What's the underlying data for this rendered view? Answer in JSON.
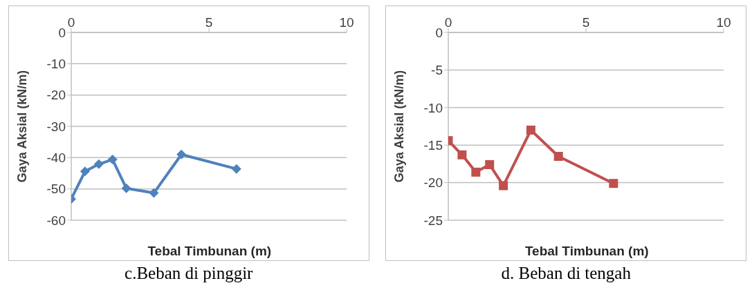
{
  "chart_data": [
    {
      "type": "line",
      "xlabel": "Tebal Timbunan (m)",
      "ylabel": "Gaya Aksial (kN/m)",
      "annotations": [
        "c.Beban di pinggir"
      ],
      "xlim": [
        0,
        10
      ],
      "xticks": [
        0,
        5,
        10
      ],
      "ylim": [
        -60,
        0
      ],
      "yticks": [
        -60,
        -50,
        -40,
        -30,
        -20,
        -10,
        0
      ],
      "grid": "y",
      "legend": false,
      "marker": "diamond",
      "x": [
        0,
        0.5,
        1,
        1.5,
        2,
        3,
        4,
        6
      ],
      "series": [
        {
          "color": "#4f81bd",
          "values": [
            -53.2,
            -44.4,
            -42.1,
            -40.6,
            -49.8,
            -51.3,
            -39.0,
            -43.6
          ]
        }
      ]
    },
    {
      "type": "line",
      "xlabel": "Tebal Timbunan (m)",
      "ylabel": "Gaya Aksial (kN/m)",
      "annotations": [
        "d. Beban di tengah"
      ],
      "xlim": [
        0,
        10
      ],
      "xticks": [
        0,
        5,
        10
      ],
      "ylim": [
        -25,
        0
      ],
      "yticks": [
        -25,
        -20,
        -15,
        -10,
        -5,
        0
      ],
      "grid": "y",
      "legend": false,
      "marker": "square",
      "x": [
        0,
        0.5,
        1,
        1.5,
        2,
        3,
        4,
        6
      ],
      "series": [
        {
          "color": "#c0504d",
          "values": [
            -14.4,
            -16.3,
            -18.6,
            -17.6,
            -20.4,
            -13.0,
            -16.5,
            -20.1
          ]
        }
      ]
    }
  ]
}
